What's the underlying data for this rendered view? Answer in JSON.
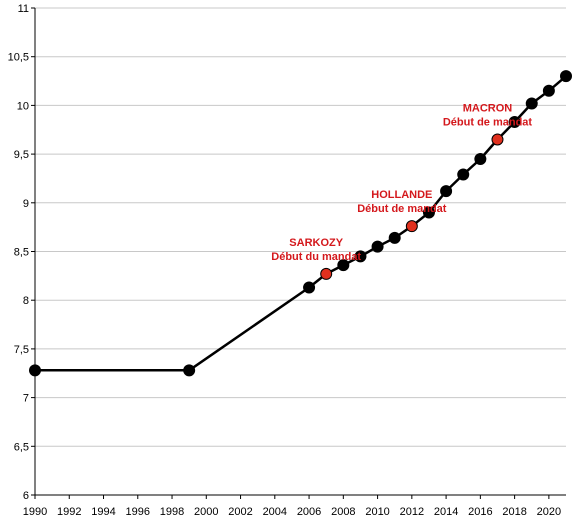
{
  "chart_data": {
    "type": "line",
    "title": "",
    "xlabel": "",
    "ylabel": "",
    "xlim": [
      1990,
      2021
    ],
    "ylim": [
      6,
      11
    ],
    "x_ticks": [
      "1990",
      "1992",
      "1994",
      "1996",
      "1998",
      "2000",
      "2002",
      "2004",
      "2006",
      "2008",
      "2010",
      "2012",
      "2014",
      "2016",
      "2018",
      "2020"
    ],
    "y_ticks": [
      "6",
      "6,5",
      "7",
      "7,5",
      "8",
      "8,5",
      "9",
      "9,5",
      "10",
      "10,5",
      "11"
    ],
    "grid": "y-major",
    "colors": {
      "line": "#000000",
      "point": "#000000",
      "highlight": "#e0301e",
      "annotation": "#d4181c"
    },
    "series": [
      {
        "points": [
          {
            "x": 1990,
            "y": 7.28
          },
          {
            "x": 1999,
            "y": 7.28
          },
          {
            "x": 2006,
            "y": 8.13
          },
          {
            "x": 2007,
            "y": 8.27,
            "highlight": true
          },
          {
            "x": 2008,
            "y": 8.36
          },
          {
            "x": 2009,
            "y": 8.45
          },
          {
            "x": 2010,
            "y": 8.55
          },
          {
            "x": 2011,
            "y": 8.64
          },
          {
            "x": 2012,
            "y": 8.76,
            "highlight": true
          },
          {
            "x": 2013,
            "y": 8.9
          },
          {
            "x": 2014,
            "y": 9.12
          },
          {
            "x": 2015,
            "y": 9.29
          },
          {
            "x": 2016,
            "y": 9.45
          },
          {
            "x": 2017,
            "y": 9.65,
            "highlight": true
          },
          {
            "x": 2018,
            "y": 9.83
          },
          {
            "x": 2019,
            "y": 10.02
          },
          {
            "x": 2020,
            "y": 10.15
          },
          {
            "x": 2021,
            "y": 10.3
          }
        ]
      }
    ],
    "annotations": [
      {
        "x": 2007,
        "line1": "SARKOZY",
        "line2": "Début du mandat"
      },
      {
        "x": 2012,
        "line1": "HOLLANDE",
        "line2": "Début de mandat"
      },
      {
        "x": 2017,
        "line1": "MACRON",
        "line2": "Début de mandat"
      }
    ]
  }
}
